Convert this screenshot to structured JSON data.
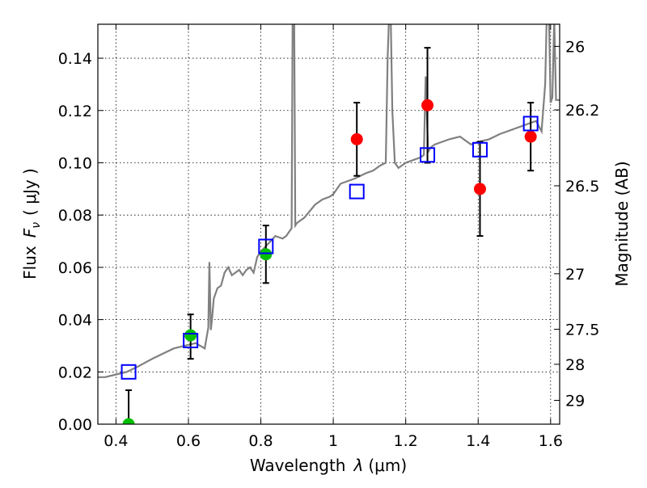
{
  "chart_data": {
    "type": "scatter",
    "xlabel_text": "Wavelength",
    "xlabel_symbol": "λ",
    "xlabel_unit": "(μm)",
    "ylabel_text": "Flux",
    "ylabel_symbol": "F",
    "ylabel_subscript": "ν",
    "ylabel_unit": "( μJy )",
    "y2label": "Magnitude (AB)",
    "xlim": [
      0.35,
      1.625
    ],
    "ylim": [
      0.0,
      0.153
    ],
    "grid": true,
    "x_ticks": [
      {
        "value": 0.4,
        "label": "0.4"
      },
      {
        "value": 0.6,
        "label": "0.6"
      },
      {
        "value": 0.8,
        "label": "0.8"
      },
      {
        "value": 1.0,
        "label": "1"
      },
      {
        "value": 1.2,
        "label": "1.2"
      },
      {
        "value": 1.4,
        "label": "1.4"
      },
      {
        "value": 1.6,
        "label": "1.6"
      }
    ],
    "y_ticks": [
      {
        "value": 0.0,
        "label": "0.00"
      },
      {
        "value": 0.02,
        "label": "0.02"
      },
      {
        "value": 0.04,
        "label": "0.04"
      },
      {
        "value": 0.06,
        "label": "0.06"
      },
      {
        "value": 0.08,
        "label": "0.08"
      },
      {
        "value": 0.1,
        "label": "0.10"
      },
      {
        "value": 0.12,
        "label": "0.12"
      },
      {
        "value": 0.14,
        "label": "0.14"
      }
    ],
    "magnitude_ticks": [
      {
        "magnitude": 26.0,
        "label": "26"
      },
      {
        "magnitude": 26.2,
        "label": "26.2"
      },
      {
        "magnitude": 26.5,
        "label": "26.5"
      },
      {
        "magnitude": 27.0,
        "label": "27"
      },
      {
        "magnitude": 27.5,
        "label": "27.5"
      },
      {
        "magnitude": 28.0,
        "label": "28"
      },
      {
        "magnitude": 29.0,
        "label": "29"
      }
    ],
    "observed_points": [
      {
        "x": 0.435,
        "y": 0.0,
        "err_low": 0.0,
        "err_high": 0.013,
        "color": "#00c000"
      },
      {
        "x": 0.606,
        "y": 0.034,
        "err_low": 0.009,
        "err_high": 0.008,
        "color": "#00c000"
      },
      {
        "x": 0.814,
        "y": 0.065,
        "err_low": 0.011,
        "err_high": 0.011,
        "color": "#00c000"
      },
      {
        "x": 1.065,
        "y": 0.109,
        "err_low": 0.014,
        "err_high": 0.014,
        "color": "#ff0000"
      },
      {
        "x": 1.26,
        "y": 0.122,
        "err_low": 0.022,
        "err_high": 0.022,
        "color": "#ff0000"
      },
      {
        "x": 1.405,
        "y": 0.09,
        "err_low": 0.018,
        "err_high": 0.018,
        "color": "#ff0000"
      },
      {
        "x": 1.545,
        "y": 0.11,
        "err_low": 0.013,
        "err_high": 0.013,
        "color": "#ff0000"
      }
    ],
    "model_points": [
      {
        "x": 0.435,
        "y": 0.02
      },
      {
        "x": 0.606,
        "y": 0.032
      },
      {
        "x": 0.814,
        "y": 0.068
      },
      {
        "x": 1.065,
        "y": 0.089
      },
      {
        "x": 1.26,
        "y": 0.103
      },
      {
        "x": 1.405,
        "y": 0.105
      },
      {
        "x": 1.545,
        "y": 0.115
      }
    ],
    "model_spectrum": {
      "x": [
        0.35,
        0.37,
        0.4,
        0.43,
        0.46,
        0.5,
        0.53,
        0.56,
        0.59,
        0.62,
        0.645,
        0.655,
        0.658,
        0.662,
        0.665,
        0.67,
        0.68,
        0.69,
        0.7,
        0.71,
        0.72,
        0.73,
        0.74,
        0.75,
        0.76,
        0.77,
        0.78,
        0.79,
        0.8,
        0.82,
        0.84,
        0.86,
        0.87,
        0.885,
        0.888,
        0.892,
        0.895,
        0.9,
        0.92,
        0.95,
        0.97,
        0.99,
        1.0,
        1.02,
        1.04,
        1.06,
        1.09,
        1.11,
        1.13,
        1.145,
        1.15,
        1.155,
        1.158,
        1.163,
        1.17,
        1.18,
        1.2,
        1.22,
        1.24,
        1.25,
        1.255,
        1.258,
        1.262,
        1.265,
        1.27,
        1.28,
        1.3,
        1.32,
        1.35,
        1.38,
        1.4,
        1.43,
        1.46,
        1.48,
        1.5,
        1.52,
        1.54,
        1.56,
        1.575,
        1.585,
        1.59,
        1.595,
        1.6,
        1.605,
        1.61,
        1.615,
        1.625
      ],
      "y": [
        0.018,
        0.018,
        0.019,
        0.02,
        0.022,
        0.025,
        0.027,
        0.029,
        0.03,
        0.031,
        0.029,
        0.037,
        0.062,
        0.036,
        0.04,
        0.048,
        0.052,
        0.053,
        0.058,
        0.06,
        0.057,
        0.058,
        0.059,
        0.057,
        0.059,
        0.06,
        0.058,
        0.064,
        0.066,
        0.069,
        0.072,
        0.071,
        0.072,
        0.075,
        0.16,
        0.16,
        0.076,
        0.077,
        0.079,
        0.084,
        0.086,
        0.087,
        0.088,
        0.092,
        0.093,
        0.094,
        0.096,
        0.097,
        0.099,
        0.1,
        0.14,
        0.16,
        0.16,
        0.12,
        0.1,
        0.098,
        0.1,
        0.101,
        0.102,
        0.103,
        0.133,
        0.12,
        0.104,
        0.105,
        0.106,
        0.107,
        0.108,
        0.109,
        0.11,
        0.107,
        0.108,
        0.109,
        0.111,
        0.112,
        0.113,
        0.114,
        0.115,
        0.116,
        0.112,
        0.13,
        0.16,
        0.16,
        0.123,
        0.125,
        0.155,
        0.124,
        0.124
      ]
    },
    "spectrum_color": "#808080",
    "model_marker_color": "#0000ff",
    "error_bar_color": "#000000"
  }
}
